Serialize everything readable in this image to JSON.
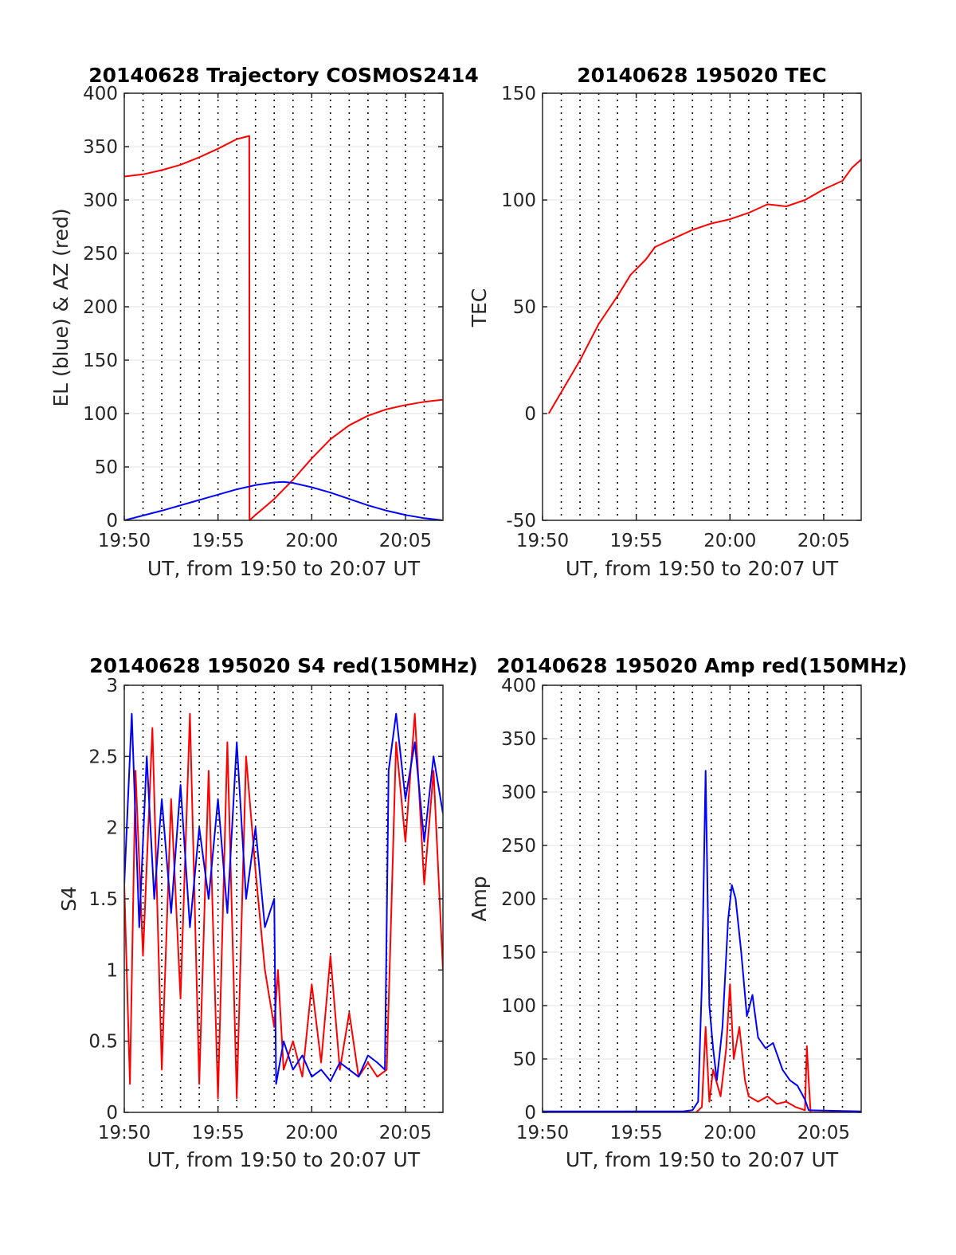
{
  "chart_data": [
    {
      "id": "trajectory",
      "type": "line",
      "title": "20140628 Trajectory COSMOS2414",
      "xlabel": "UT, from 19:50 to 20:07 UT",
      "ylabel": "EL (blue) & AZ (red)",
      "xlim": [
        0,
        17
      ],
      "ylim": [
        0,
        400
      ],
      "xticks": [
        {
          "v": 0,
          "label": "19:50"
        },
        {
          "v": 5,
          "label": "19:55"
        },
        {
          "v": 10,
          "label": "20:00"
        },
        {
          "v": 15,
          "label": "20:05"
        }
      ],
      "yticks": [
        0,
        50,
        100,
        150,
        200,
        250,
        300,
        350,
        400
      ],
      "grid": "dotted vertical every 1 minute, light horizontal",
      "series": [
        {
          "color": "#ff0000",
          "x": [
            0,
            1,
            2,
            3,
            4,
            5,
            6,
            6.67,
            6.68,
            7,
            8,
            9,
            10,
            11,
            12,
            13,
            14,
            15,
            16,
            17
          ],
          "y": [
            322,
            324,
            328,
            333,
            340,
            348,
            357,
            360,
            0,
            5,
            20,
            38,
            58,
            76,
            89,
            98,
            104,
            108,
            111,
            113
          ]
        },
        {
          "color": "#0000ff",
          "x": [
            0,
            2,
            4,
            6,
            7,
            8,
            8.5,
            9,
            10,
            11,
            12,
            13,
            14,
            15,
            16,
            17
          ],
          "y": [
            0,
            9,
            19,
            29,
            33,
            35.5,
            36,
            35,
            31,
            26,
            20,
            14,
            9,
            5,
            2,
            0
          ]
        }
      ]
    },
    {
      "id": "tec",
      "type": "line",
      "title": "20140628 195020 TEC",
      "xlabel": "UT, from 19:50 to 20:07 UT",
      "ylabel": "TEC",
      "xlim": [
        0,
        17
      ],
      "ylim": [
        -50,
        150
      ],
      "xticks": [
        {
          "v": 0,
          "label": "19:50"
        },
        {
          "v": 5,
          "label": "19:55"
        },
        {
          "v": 10,
          "label": "20:00"
        },
        {
          "v": 15,
          "label": "20:05"
        }
      ],
      "yticks": [
        -50,
        0,
        50,
        100,
        150
      ],
      "grid": "dotted vertical every 1 minute, light horizontal",
      "series": [
        {
          "color": "#ff0000",
          "x": [
            0.33,
            1,
            2,
            3,
            4,
            4.7,
            5.5,
            6,
            7,
            8,
            9,
            10,
            11,
            12,
            13,
            14,
            15,
            16,
            16.5,
            17
          ],
          "y": [
            0,
            10,
            25,
            42,
            55,
            65,
            72,
            78,
            82,
            86,
            89,
            91,
            94,
            98,
            97,
            100,
            105,
            109,
            115,
            119
          ]
        }
      ]
    },
    {
      "id": "s4",
      "type": "line",
      "title": "20140628 195020 S4 red(150MHz)",
      "xlabel": "UT, from 19:50 to 20:07 UT",
      "ylabel": "S4",
      "xlim": [
        0,
        17
      ],
      "ylim": [
        0,
        3
      ],
      "xticks": [
        {
          "v": 0,
          "label": "19:50"
        },
        {
          "v": 5,
          "label": "19:55"
        },
        {
          "v": 10,
          "label": "20:00"
        },
        {
          "v": 15,
          "label": "20:05"
        }
      ],
      "yticks": [
        0,
        0.5,
        1,
        1.5,
        2,
        2.5,
        3
      ],
      "ytickLabels": [
        "0",
        "0.5",
        "1",
        "1.5",
        "2",
        "2.5",
        "3"
      ],
      "grid": "dotted vertical every 1 minute, light horizontal",
      "series": [
        {
          "color": "#ff0000",
          "x": [
            0,
            0.3,
            0.6,
            1,
            1.5,
            2,
            2.5,
            3,
            3.5,
            4,
            4.5,
            5,
            5.5,
            6,
            6.5,
            7,
            7.5,
            8,
            8.2,
            8.5,
            9,
            9.5,
            10,
            10.5,
            11,
            11.5,
            12,
            12.5,
            13,
            13.5,
            14,
            14.2,
            14.5,
            15,
            15.5,
            16,
            16.5,
            17
          ],
          "y": [
            1.6,
            0.2,
            2.4,
            1.1,
            2.7,
            0.3,
            2.2,
            0.8,
            2.8,
            0.2,
            2.4,
            0.1,
            2.6,
            0.1,
            2.5,
            1.7,
            1.0,
            0.6,
            1.0,
            0.3,
            0.5,
            0.25,
            0.9,
            0.35,
            1.1,
            0.3,
            0.7,
            0.25,
            0.35,
            0.25,
            0.3,
            1.2,
            2.6,
            1.9,
            2.8,
            1.6,
            2.4,
            1.0
          ]
        },
        {
          "color": "#0000ff",
          "x": [
            0,
            0.4,
            0.8,
            1.2,
            1.6,
            2,
            2.5,
            3,
            3.5,
            4,
            4.5,
            5,
            5.5,
            6,
            6.5,
            7,
            7.5,
            8,
            8.1,
            8.5,
            9,
            9.5,
            10,
            10.5,
            11,
            11.5,
            12,
            12.5,
            13,
            13.5,
            13.9,
            14.1,
            14.5,
            15,
            15.5,
            16,
            16.5,
            17
          ],
          "y": [
            1.6,
            2.8,
            1.3,
            2.5,
            1.5,
            2.2,
            1.4,
            2.3,
            1.3,
            2.0,
            1.5,
            2.2,
            1.4,
            2.6,
            1.5,
            2.0,
            1.3,
            1.5,
            0.2,
            0.5,
            0.3,
            0.4,
            0.25,
            0.3,
            0.22,
            0.35,
            0.3,
            0.25,
            0.4,
            0.35,
            0.3,
            2.4,
            2.8,
            2.2,
            2.6,
            1.9,
            2.5,
            2.1
          ]
        }
      ]
    },
    {
      "id": "amp",
      "type": "line",
      "title": "20140628 195020 Amp red(150MHz)",
      "xlabel": "UT, from 19:50 to 20:07 UT",
      "ylabel": "Amp",
      "xlim": [
        0,
        17
      ],
      "ylim": [
        0,
        400
      ],
      "xticks": [
        {
          "v": 0,
          "label": "19:50"
        },
        {
          "v": 5,
          "label": "19:55"
        },
        {
          "v": 10,
          "label": "20:00"
        },
        {
          "v": 15,
          "label": "20:05"
        }
      ],
      "yticks": [
        0,
        50,
        100,
        150,
        200,
        250,
        300,
        350,
        400
      ],
      "grid": "dotted vertical every 1 minute, light horizontal",
      "series": [
        {
          "color": "#ff0000",
          "x": [
            0,
            8.2,
            8.5,
            8.7,
            8.9,
            9.1,
            9.5,
            9.8,
            10,
            10.2,
            10.5,
            10.8,
            11,
            11.5,
            12,
            12.5,
            13,
            13.5,
            14,
            14.1,
            14.2,
            14.3,
            17
          ],
          "y": [
            0,
            0,
            5,
            80,
            10,
            40,
            15,
            60,
            120,
            50,
            80,
            30,
            15,
            10,
            15,
            8,
            10,
            5,
            2,
            62,
            30,
            0,
            0
          ]
        },
        {
          "color": "#0000ff",
          "x": [
            0,
            7.5,
            8.0,
            8.3,
            8.5,
            8.7,
            8.9,
            9.1,
            9.3,
            9.6,
            9.9,
            10.1,
            10.3,
            10.6,
            10.9,
            11.2,
            11.5,
            11.9,
            12.3,
            12.8,
            13.2,
            13.6,
            14.0,
            14.2,
            17
          ],
          "y": [
            1,
            1,
            2,
            10,
            120,
            320,
            100,
            60,
            30,
            80,
            180,
            213,
            200,
            150,
            90,
            110,
            70,
            60,
            65,
            40,
            30,
            25,
            12,
            2,
            1
          ]
        }
      ]
    }
  ]
}
